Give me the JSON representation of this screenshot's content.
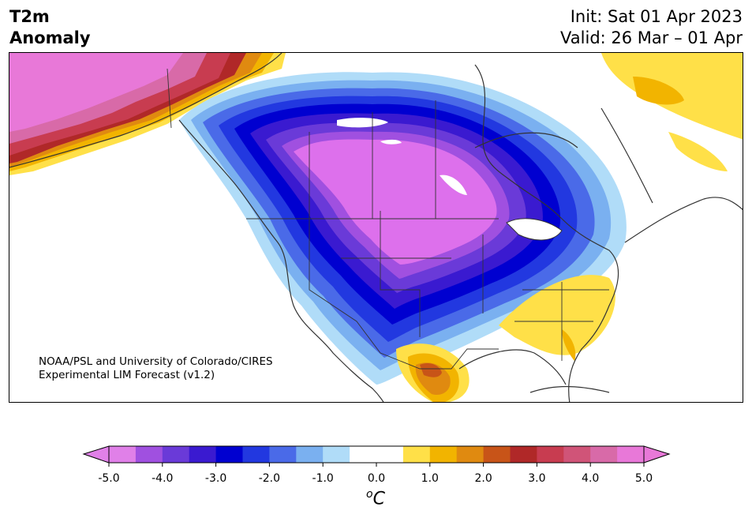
{
  "header": {
    "title_line1": "T2m",
    "title_line2": "Anomaly",
    "init": "Init: Sat 01 Apr 2023",
    "valid": "Valid: 26 Mar – 01 Apr"
  },
  "credit": {
    "line1": "NOAA/PSL and University of Colorado/CIRES",
    "line2": "Experimental LIM Forecast (v1.2)"
  },
  "colorbar": {
    "tick_labels": [
      "-5.0",
      "-4.0",
      "-3.0",
      "-2.0",
      "-1.0",
      "0.0",
      "1.0",
      "2.0",
      "3.0",
      "4.0",
      "5.0"
    ],
    "unit_superscript": "o",
    "unit": "C",
    "colors": [
      "#e080e8",
      "#a050e0",
      "#6a3ad8",
      "#3a1ad0",
      "#0000d0",
      "#2238e0",
      "#4a6ae8",
      "#7ab0f0",
      "#b0dcf8",
      "#ffffff",
      "#ffffff",
      "#ffe048",
      "#f2b400",
      "#e08a10",
      "#c85418",
      "#b02828",
      "#c83c50",
      "#d05478",
      "#d86aa8",
      "#e878d8"
    ]
  },
  "colors": {
    "coast": "#333333",
    "cold_core": "#dd70ec",
    "warm_core": "#ffe048"
  }
}
